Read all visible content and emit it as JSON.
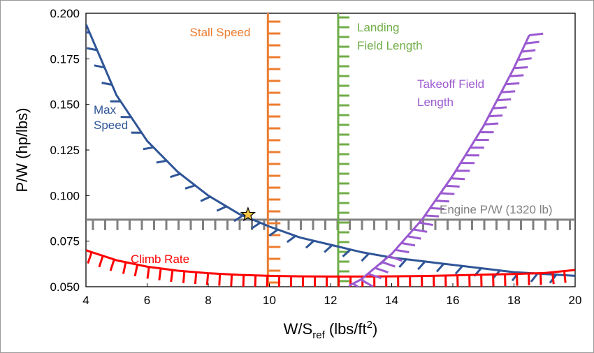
{
  "chart_data": {
    "type": "line",
    "title": "",
    "xlabel": {
      "main": "W/S",
      "sub": "ref",
      "rest": " (lbs/ft",
      "sup": "2",
      "end": ")"
    },
    "ylabel": "P/W (hp/lbs)",
    "xlim": [
      4,
      20
    ],
    "ylim": [
      0.05,
      0.2
    ],
    "x_ticks": [
      "4",
      "6",
      "8",
      "10",
      "12",
      "14",
      "16",
      "18",
      "20"
    ],
    "y_ticks": [
      "0.050",
      "0.075",
      "0.100",
      "0.125",
      "0.150",
      "0.175",
      "0.200"
    ],
    "grid": false,
    "series": [
      {
        "name": "Max Speed",
        "label_lines": [
          "Max",
          "Speed"
        ],
        "color": "#2f5597",
        "x": [
          4.0,
          5.0,
          6.0,
          7.0,
          8.0,
          9.0,
          10.0,
          11.0,
          12.0,
          13.0,
          14.0,
          15.0,
          16.0,
          17.0,
          18.0,
          19.0,
          20.0
        ],
        "y": [
          0.194,
          0.155,
          0.13,
          0.113,
          0.1,
          0.09,
          0.083,
          0.077,
          0.073,
          0.069,
          0.066,
          0.064,
          0.062,
          0.06,
          0.058,
          0.057,
          0.056
        ]
      },
      {
        "name": "Climb Rate",
        "label_lines": [
          "Climb Rate"
        ],
        "color": "#ff0000",
        "x": [
          4.0,
          5.0,
          6.0,
          7.0,
          8.0,
          9.0,
          10.0,
          11.0,
          12.0,
          13.0,
          14.0,
          15.0,
          16.0,
          17.0,
          18.0,
          19.0,
          20.0
        ],
        "y": [
          0.07,
          0.0645,
          0.061,
          0.0588,
          0.0574,
          0.0565,
          0.056,
          0.0557,
          0.0556,
          0.0556,
          0.0557,
          0.0559,
          0.0562,
          0.0566,
          0.057,
          0.0575,
          0.0592
        ]
      },
      {
        "name": "Stall Speed",
        "label_lines": [
          "Stall Speed"
        ],
        "color": "#ed7d31",
        "x": [
          9.95,
          9.95
        ],
        "y": [
          0.05,
          0.2
        ]
      },
      {
        "name": "Landing Field Length",
        "label_lines": [
          "Landing",
          "Field Length"
        ],
        "color": "#70ad47",
        "x": [
          12.25,
          12.25
        ],
        "y": [
          0.05,
          0.2
        ]
      },
      {
        "name": "Takeoff Field Length",
        "label_lines": [
          "Takeoff Field",
          "Length"
        ],
        "color": "#9b59d0",
        "x": [
          12.6,
          13.0,
          14.0,
          15.0,
          16.0,
          17.0,
          18.0,
          18.5
        ],
        "y": [
          0.0505,
          0.054,
          0.068,
          0.087,
          0.111,
          0.138,
          0.17,
          0.188
        ]
      },
      {
        "name": "Engine P/W (1320 lb)",
        "label_lines": [
          "Engine P/W (1320 lb)"
        ],
        "color": "#808080",
        "x": [
          4,
          20
        ],
        "y": [
          0.0868,
          0.0868
        ]
      }
    ],
    "design_point": {
      "x": 9.3,
      "y": 0.0895,
      "marker": "star",
      "color": "#f5c542"
    }
  }
}
